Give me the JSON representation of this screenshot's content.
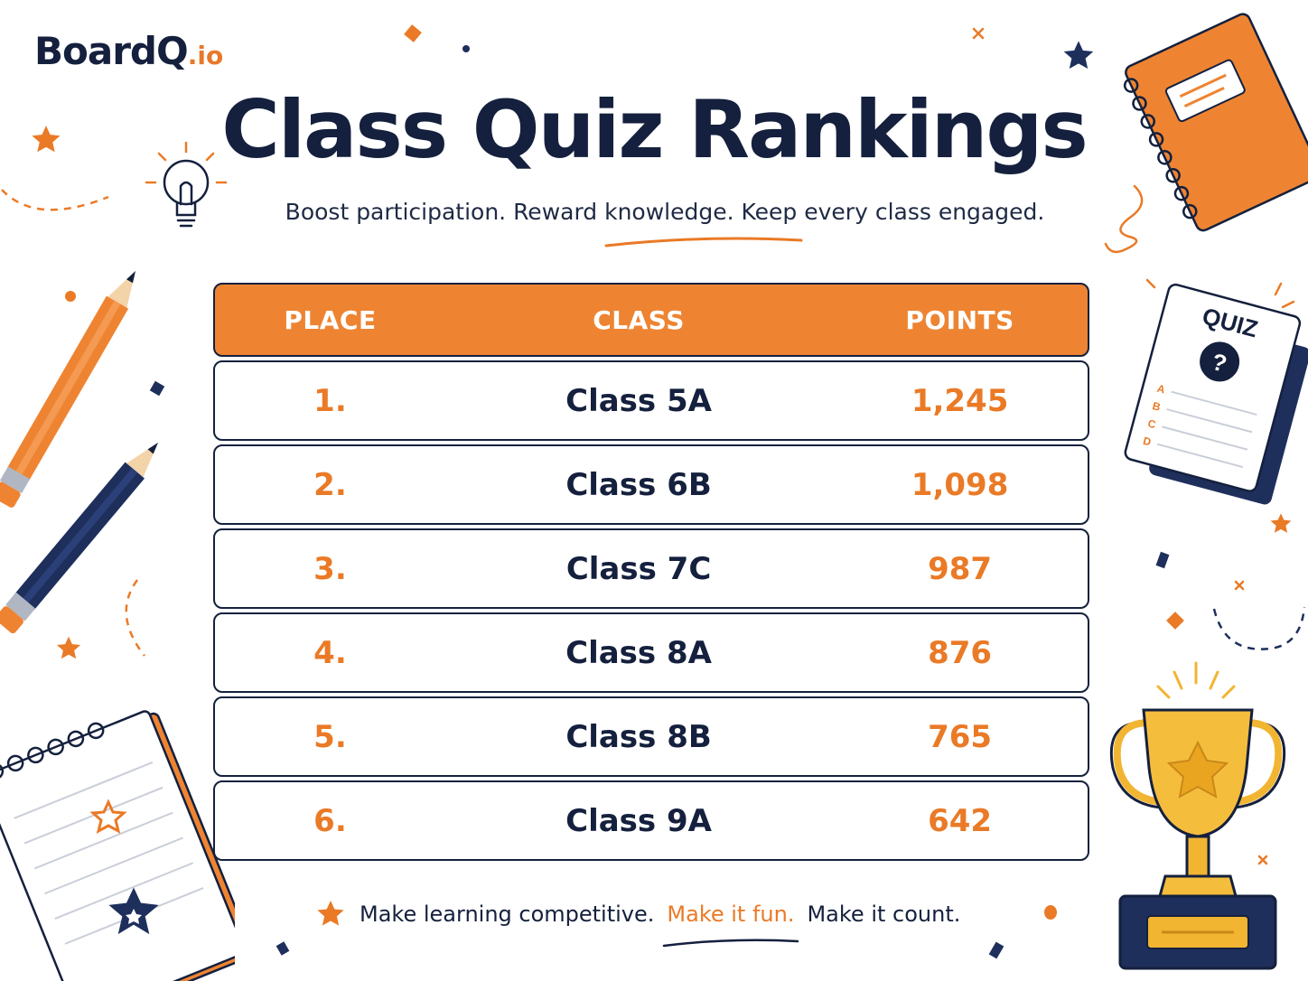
{
  "brand": {
    "name": "BoardQ",
    "suffix": ".io"
  },
  "title": "Class Quiz Rankings",
  "subtitle": "Boost participation. Reward knowledge. Keep every class engaged.",
  "table": {
    "headers": [
      "PLACE",
      "CLASS",
      "POINTS"
    ],
    "rows": [
      {
        "place": "1.",
        "class": "Class 5A",
        "points": "1,245"
      },
      {
        "place": "2.",
        "class": "Class 6B",
        "points": "1,098"
      },
      {
        "place": "3.",
        "class": "Class 7C",
        "points": "987"
      },
      {
        "place": "4.",
        "class": "Class 8A",
        "points": "876"
      },
      {
        "place": "5.",
        "class": "Class 8B",
        "points": "765"
      },
      {
        "place": "6.",
        "class": "Class 9A",
        "points": "642"
      }
    ]
  },
  "footer": {
    "part1": "Make learning competitive.",
    "part2": "Make it fun.",
    "part3": "Make it count."
  },
  "quiz_card": {
    "label": "QUIZ",
    "symbol": "?",
    "options": [
      "A",
      "B",
      "C",
      "D"
    ]
  },
  "colors": {
    "accent": "#ee8432",
    "navy": "#14203d",
    "gold": "#f2b532"
  }
}
